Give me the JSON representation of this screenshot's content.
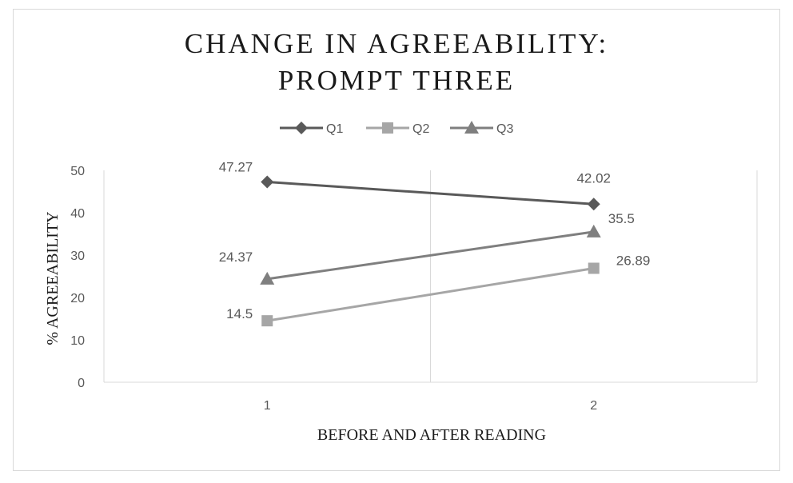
{
  "chart_data": {
    "type": "line",
    "title_lines": [
      "CHANGE IN AGREEABILITY:",
      "PROMPT THREE"
    ],
    "xlabel": "BEFORE AND AFTER READING",
    "ylabel": "% AGREEABILITY",
    "categories": [
      "1",
      "2"
    ],
    "ylim": [
      0,
      50
    ],
    "yticks": [
      0,
      10,
      20,
      30,
      40,
      50
    ],
    "grid": "vertical",
    "legend_position": "top",
    "series": [
      {
        "name": "Q1",
        "values": [
          47.27,
          42.02
        ],
        "labels": [
          "47.27",
          "42.02"
        ],
        "color": "#595959",
        "marker": "diamond"
      },
      {
        "name": "Q2",
        "values": [
          14.5,
          26.89
        ],
        "labels": [
          "14.5",
          "26.89"
        ],
        "color": "#a6a6a6",
        "marker": "square"
      },
      {
        "name": "Q3",
        "values": [
          24.37,
          35.5
        ],
        "labels": [
          "24.37",
          "35.5"
        ],
        "color": "#7f7f7f",
        "marker": "triangle"
      }
    ]
  }
}
